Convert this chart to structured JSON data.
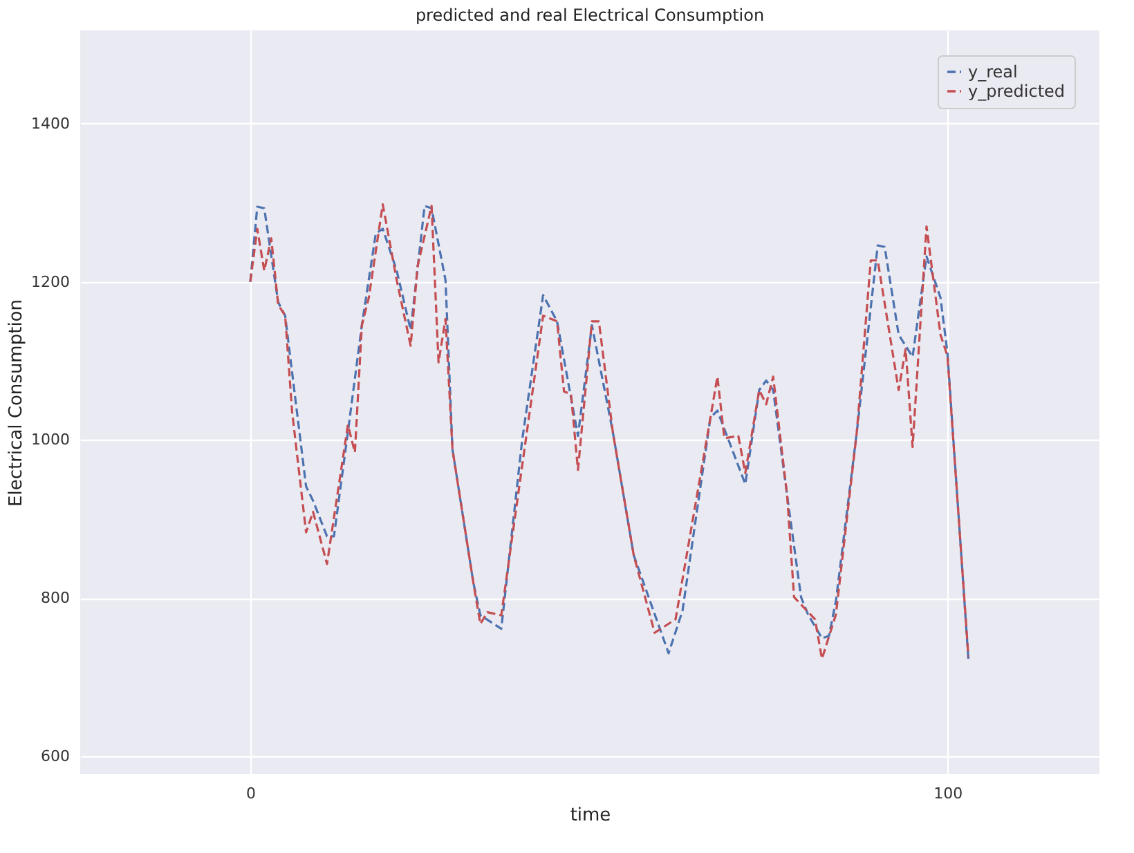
{
  "chart_data": {
    "type": "line",
    "title": "predicted and real Electrical Consumption",
    "xlabel": "time",
    "ylabel": "Electrical Consumption",
    "xlim": [
      -24.4,
      121.8
    ],
    "ylim": [
      577,
      1518
    ],
    "xticks": [
      0,
      100
    ],
    "yticks": [
      600,
      800,
      1000,
      1200,
      1400
    ],
    "grid": true,
    "legend": "top right",
    "line_style": "dashed",
    "marker": "none",
    "series": [
      {
        "name": "y_real",
        "color": "#4c72b0",
        "x": [
          0,
          1,
          2,
          4,
          5,
          8,
          9,
          11,
          12,
          14,
          16,
          18,
          19,
          21,
          23,
          25,
          26,
          28,
          29,
          32,
          33,
          36,
          39,
          42,
          44,
          47,
          49,
          52,
          55,
          60,
          62,
          66,
          67,
          71,
          73,
          74,
          75,
          77,
          79,
          80,
          82,
          83,
          84,
          87,
          90,
          91,
          93,
          95,
          97,
          99,
          100,
          103
        ],
        "values": [
          1200,
          1295,
          1293,
          1174,
          1157,
          941,
          923,
          878,
          878,
          1010,
          1145,
          1261,
          1267,
          1214,
          1139,
          1296,
          1293,
          1202,
          988,
          819,
          778,
          761,
          1000,
          1183,
          1150,
          1005,
          1145,
          1010,
          854,
          730,
          784,
          1028,
          1037,
          944,
          1063,
          1075,
          1063,
          930,
          801,
          779,
          749,
          752,
          796,
          1010,
          1246,
          1244,
          1133,
          1105,
          1232,
          1180,
          1110,
          723
        ]
      },
      {
        "name": "y_predicted",
        "color": "#c44e52",
        "x": [
          0,
          1,
          2,
          3,
          4,
          5,
          6,
          8,
          9,
          11,
          14,
          15,
          16,
          17,
          19,
          21,
          23,
          24,
          26,
          27,
          28,
          29,
          32,
          33,
          34,
          36,
          42,
          44,
          45,
          46,
          47,
          49,
          50,
          52,
          55,
          58,
          61,
          66,
          67,
          68,
          70,
          71,
          73,
          74,
          75,
          77,
          78,
          81,
          82,
          84,
          87,
          89,
          90,
          93,
          94,
          95,
          97,
          99,
          100,
          103
        ],
        "values": [
          1200,
          1267,
          1214,
          1255,
          1171,
          1157,
          1035,
          883,
          909,
          843,
          1019,
          984,
          1145,
          1180,
          1298,
          1202,
          1119,
          1220,
          1296,
          1098,
          1153,
          988,
          819,
          767,
          782,
          778,
          1157,
          1150,
          1061,
          1058,
          962,
          1150,
          1150,
          1010,
          854,
          756,
          773,
          1028,
          1080,
          1002,
          1005,
          958,
          1063,
          1045,
          1080,
          930,
          801,
          773,
          723,
          779,
          1010,
          1227,
          1227,
          1063,
          1115,
          991,
          1270,
          1133,
          1106,
          726
        ]
      }
    ]
  }
}
